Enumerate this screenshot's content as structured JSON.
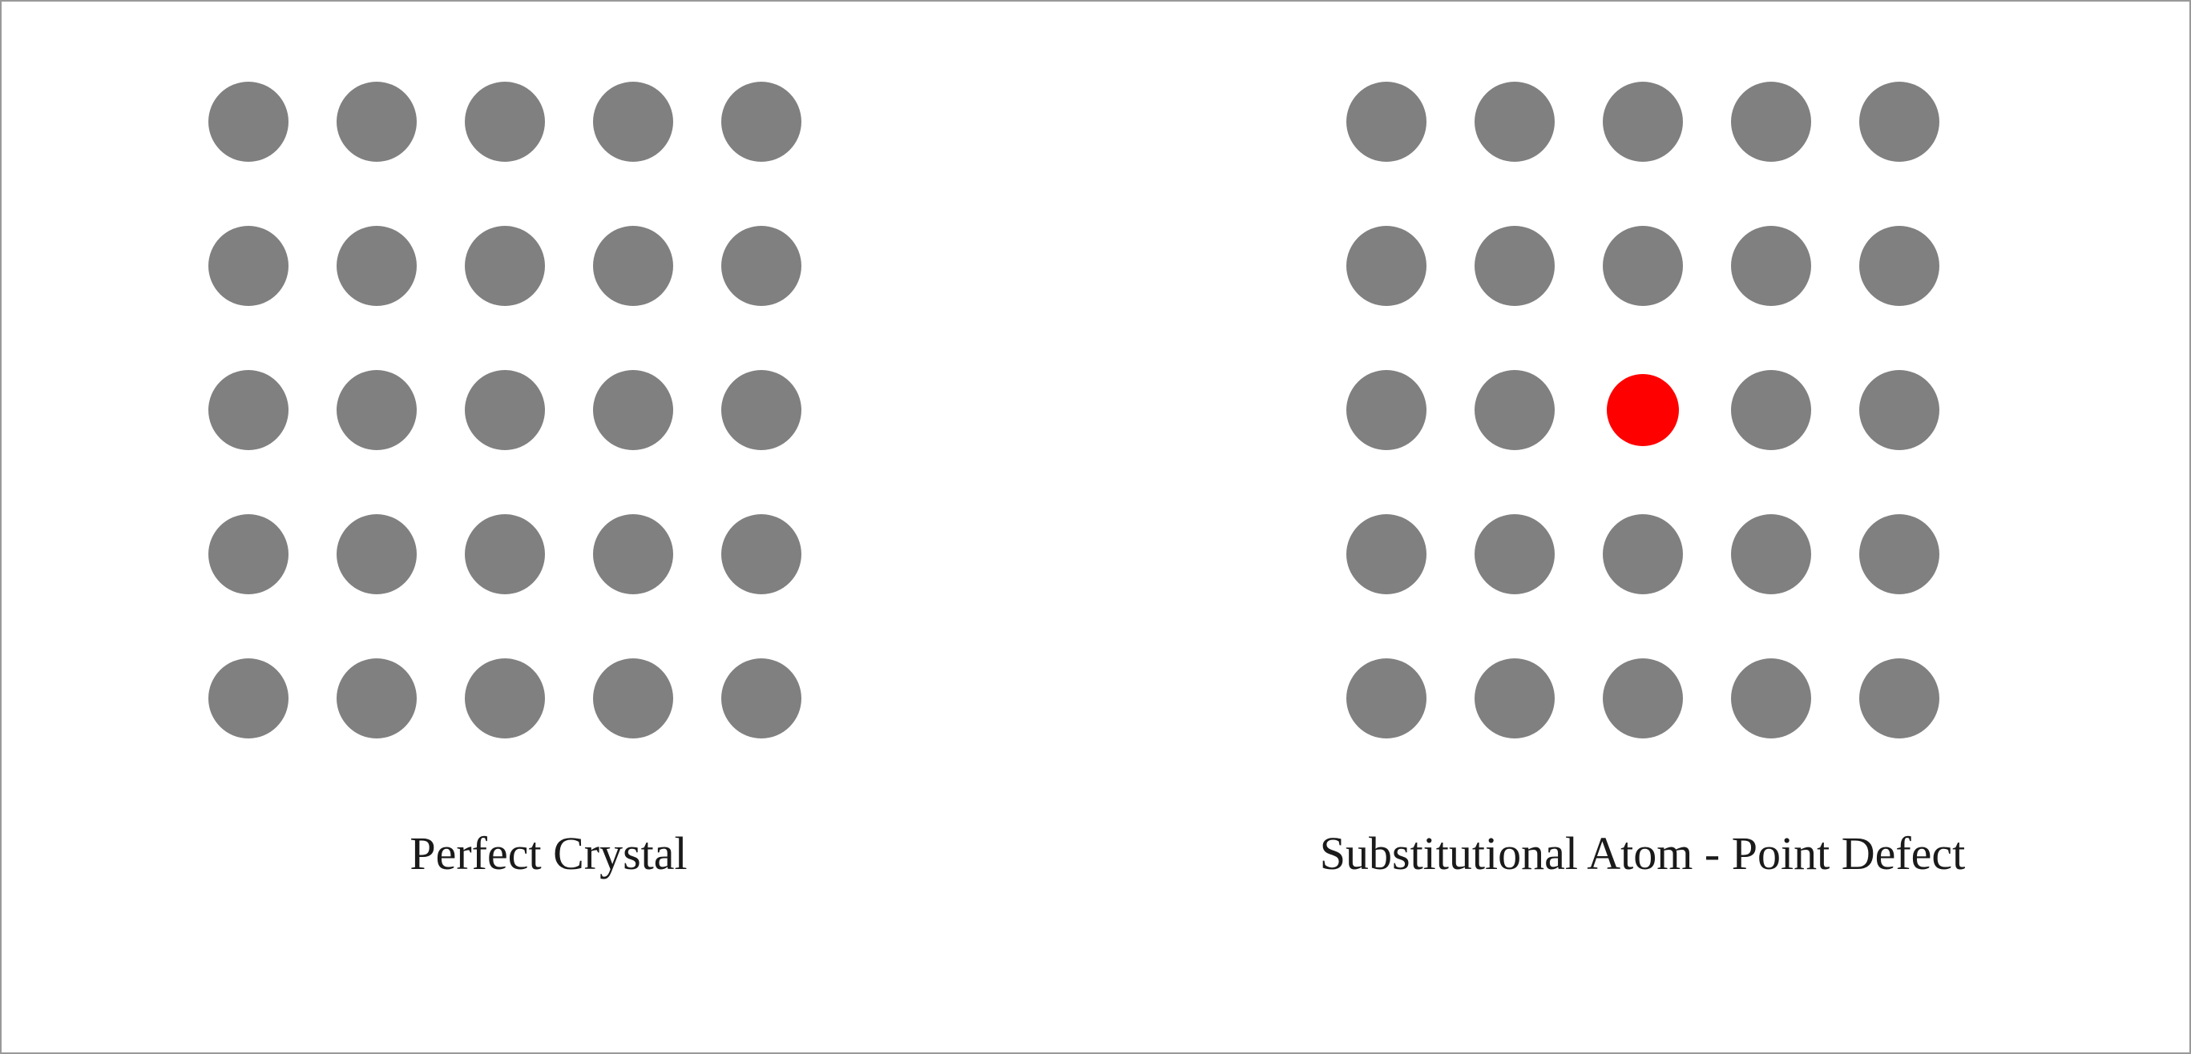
{
  "diagram": {
    "type": "infographic",
    "background_color": "#ffffff",
    "border_color": "#999999",
    "border_width": 2,
    "caption_fontsize": 58,
    "caption_color": "#1a1a1a",
    "font_family": "Georgia, serif",
    "panels": [
      {
        "id": "perfect-crystal",
        "caption": "Perfect Crystal",
        "grid": {
          "rows": 5,
          "cols": 5,
          "column_gap": 60,
          "row_gap": 80
        },
        "atoms": [
          {
            "row": 0,
            "col": 0,
            "color": "#808080",
            "radius": 50
          },
          {
            "row": 0,
            "col": 1,
            "color": "#808080",
            "radius": 50
          },
          {
            "row": 0,
            "col": 2,
            "color": "#808080",
            "radius": 50
          },
          {
            "row": 0,
            "col": 3,
            "color": "#808080",
            "radius": 50
          },
          {
            "row": 0,
            "col": 4,
            "color": "#808080",
            "radius": 50
          },
          {
            "row": 1,
            "col": 0,
            "color": "#808080",
            "radius": 50
          },
          {
            "row": 1,
            "col": 1,
            "color": "#808080",
            "radius": 50
          },
          {
            "row": 1,
            "col": 2,
            "color": "#808080",
            "radius": 50
          },
          {
            "row": 1,
            "col": 3,
            "color": "#808080",
            "radius": 50
          },
          {
            "row": 1,
            "col": 4,
            "color": "#808080",
            "radius": 50
          },
          {
            "row": 2,
            "col": 0,
            "color": "#808080",
            "radius": 50
          },
          {
            "row": 2,
            "col": 1,
            "color": "#808080",
            "radius": 50
          },
          {
            "row": 2,
            "col": 2,
            "color": "#808080",
            "radius": 50
          },
          {
            "row": 2,
            "col": 3,
            "color": "#808080",
            "radius": 50
          },
          {
            "row": 2,
            "col": 4,
            "color": "#808080",
            "radius": 50
          },
          {
            "row": 3,
            "col": 0,
            "color": "#808080",
            "radius": 50
          },
          {
            "row": 3,
            "col": 1,
            "color": "#808080",
            "radius": 50
          },
          {
            "row": 3,
            "col": 2,
            "color": "#808080",
            "radius": 50
          },
          {
            "row": 3,
            "col": 3,
            "color": "#808080",
            "radius": 50
          },
          {
            "row": 3,
            "col": 4,
            "color": "#808080",
            "radius": 50
          },
          {
            "row": 4,
            "col": 0,
            "color": "#808080",
            "radius": 50
          },
          {
            "row": 4,
            "col": 1,
            "color": "#808080",
            "radius": 50
          },
          {
            "row": 4,
            "col": 2,
            "color": "#808080",
            "radius": 50
          },
          {
            "row": 4,
            "col": 3,
            "color": "#808080",
            "radius": 50
          },
          {
            "row": 4,
            "col": 4,
            "color": "#808080",
            "radius": 50
          }
        ]
      },
      {
        "id": "substitutional-defect",
        "caption": "Substitutional Atom - Point Defect",
        "grid": {
          "rows": 5,
          "cols": 5,
          "column_gap": 60,
          "row_gap": 80
        },
        "atoms": [
          {
            "row": 0,
            "col": 0,
            "color": "#808080",
            "radius": 50
          },
          {
            "row": 0,
            "col": 1,
            "color": "#808080",
            "radius": 50
          },
          {
            "row": 0,
            "col": 2,
            "color": "#808080",
            "radius": 50
          },
          {
            "row": 0,
            "col": 3,
            "color": "#808080",
            "radius": 50
          },
          {
            "row": 0,
            "col": 4,
            "color": "#808080",
            "radius": 50
          },
          {
            "row": 1,
            "col": 0,
            "color": "#808080",
            "radius": 50
          },
          {
            "row": 1,
            "col": 1,
            "color": "#808080",
            "radius": 50
          },
          {
            "row": 1,
            "col": 2,
            "color": "#808080",
            "radius": 50
          },
          {
            "row": 1,
            "col": 3,
            "color": "#808080",
            "radius": 50
          },
          {
            "row": 1,
            "col": 4,
            "color": "#808080",
            "radius": 50
          },
          {
            "row": 2,
            "col": 0,
            "color": "#808080",
            "radius": 50
          },
          {
            "row": 2,
            "col": 1,
            "color": "#808080",
            "radius": 50
          },
          {
            "row": 2,
            "col": 2,
            "color": "#ff0000",
            "radius": 45
          },
          {
            "row": 2,
            "col": 3,
            "color": "#808080",
            "radius": 50
          },
          {
            "row": 2,
            "col": 4,
            "color": "#808080",
            "radius": 50
          },
          {
            "row": 3,
            "col": 0,
            "color": "#808080",
            "radius": 50
          },
          {
            "row": 3,
            "col": 1,
            "color": "#808080",
            "radius": 50
          },
          {
            "row": 3,
            "col": 2,
            "color": "#808080",
            "radius": 50
          },
          {
            "row": 3,
            "col": 3,
            "color": "#808080",
            "radius": 50
          },
          {
            "row": 3,
            "col": 4,
            "color": "#808080",
            "radius": 50
          },
          {
            "row": 4,
            "col": 0,
            "color": "#808080",
            "radius": 50
          },
          {
            "row": 4,
            "col": 1,
            "color": "#808080",
            "radius": 50
          },
          {
            "row": 4,
            "col": 2,
            "color": "#808080",
            "radius": 50
          },
          {
            "row": 4,
            "col": 3,
            "color": "#808080",
            "radius": 50
          },
          {
            "row": 4,
            "col": 4,
            "color": "#808080",
            "radius": 50
          }
        ]
      }
    ]
  }
}
